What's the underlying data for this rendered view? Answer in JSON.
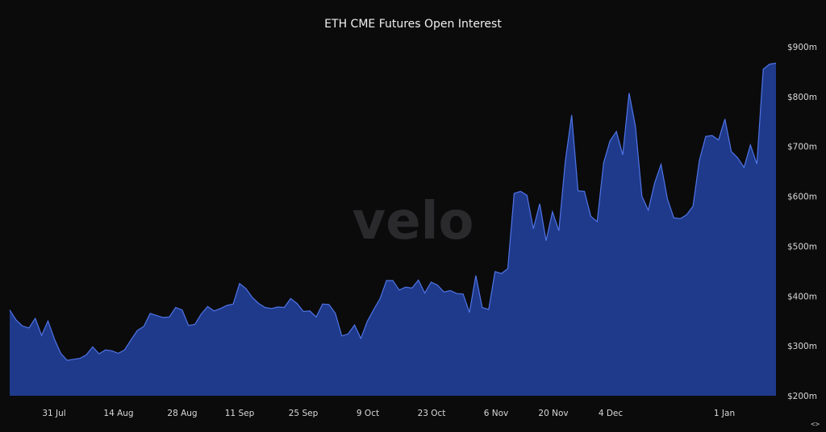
{
  "chart_data": {
    "type": "area",
    "title": "ETH CME Futures Open Interest",
    "watermark": "velo",
    "nav_label": "<>",
    "fill_color": "#1f3a8a",
    "line_color": "#4f74e8",
    "background": "#0b0b0c",
    "ylim": [
      200,
      900
    ],
    "yticks": [
      {
        "value": 200,
        "label": "$200m"
      },
      {
        "value": 300,
        "label": "$300m"
      },
      {
        "value": 400,
        "label": "$400m"
      },
      {
        "value": 500,
        "label": "$500m"
      },
      {
        "value": 600,
        "label": "$600m"
      },
      {
        "value": 700,
        "label": "$700m"
      },
      {
        "value": 800,
        "label": "$800m"
      },
      {
        "value": 900,
        "label": "$900m"
      }
    ],
    "xlim": [
      "2023-07-24",
      "2024-01-10"
    ],
    "xticks": [
      {
        "date": "2023-07-31",
        "label": "31 Jul"
      },
      {
        "date": "2023-08-14",
        "label": "14 Aug"
      },
      {
        "date": "2023-08-28",
        "label": "28 Aug"
      },
      {
        "date": "2023-09-11",
        "label": "11 Sep"
      },
      {
        "date": "2023-09-25",
        "label": "25 Sep"
      },
      {
        "date": "2023-10-09",
        "label": "9 Oct"
      },
      {
        "date": "2023-10-23",
        "label": "23 Oct"
      },
      {
        "date": "2023-11-06",
        "label": "6 Nov"
      },
      {
        "date": "2023-11-20",
        "label": "20 Nov"
      },
      {
        "date": "2023-12-04",
        "label": "4 Dec"
      },
      {
        "date": "2024-01-01",
        "label": "1 Jan"
      }
    ],
    "series": [
      {
        "points": [
          [
            "2023-07-24",
            372
          ],
          [
            "2023-07-25",
            352
          ],
          [
            "2023-07-26",
            340
          ],
          [
            "2023-07-27",
            336
          ],
          [
            "2023-07-28",
            355
          ],
          [
            "2023-07-29",
            321
          ],
          [
            "2023-07-30",
            350
          ],
          [
            "2023-07-31",
            314
          ],
          [
            "2023-08-01",
            285
          ],
          [
            "2023-08-02",
            271
          ],
          [
            "2023-08-03",
            273
          ],
          [
            "2023-08-04",
            275
          ],
          [
            "2023-08-05",
            282
          ],
          [
            "2023-08-06",
            298
          ],
          [
            "2023-08-07",
            284
          ],
          [
            "2023-08-08",
            292
          ],
          [
            "2023-08-09",
            290
          ],
          [
            "2023-08-10",
            285
          ],
          [
            "2023-08-11",
            292
          ],
          [
            "2023-08-12",
            312
          ],
          [
            "2023-08-13",
            331
          ],
          [
            "2023-08-14",
            339
          ],
          [
            "2023-08-15",
            365
          ],
          [
            "2023-08-16",
            361
          ],
          [
            "2023-08-17",
            357
          ],
          [
            "2023-08-18",
            358
          ],
          [
            "2023-08-19",
            377
          ],
          [
            "2023-08-20",
            372
          ],
          [
            "2023-08-21",
            341
          ],
          [
            "2023-08-22",
            343
          ],
          [
            "2023-08-23",
            364
          ],
          [
            "2023-08-24",
            379
          ],
          [
            "2023-08-25",
            370
          ],
          [
            "2023-08-26",
            375
          ],
          [
            "2023-08-27",
            381
          ],
          [
            "2023-08-28",
            384
          ],
          [
            "2023-08-29",
            425
          ],
          [
            "2023-08-30",
            415
          ],
          [
            "2023-08-31",
            397
          ],
          [
            "2023-09-01",
            385
          ],
          [
            "2023-09-02",
            377
          ],
          [
            "2023-09-03",
            375
          ],
          [
            "2023-09-04",
            378
          ],
          [
            "2023-09-05",
            377
          ],
          [
            "2023-09-06",
            395
          ],
          [
            "2023-09-07",
            385
          ],
          [
            "2023-09-08",
            369
          ],
          [
            "2023-09-09",
            370
          ],
          [
            "2023-09-10",
            358
          ],
          [
            "2023-09-11",
            384
          ],
          [
            "2023-09-12",
            383
          ],
          [
            "2023-09-13",
            365
          ],
          [
            "2023-09-14",
            320
          ],
          [
            "2023-09-15",
            324
          ],
          [
            "2023-09-16",
            342
          ],
          [
            "2023-09-17",
            315
          ],
          [
            "2023-09-18",
            349
          ],
          [
            "2023-09-19",
            373
          ],
          [
            "2023-09-20",
            395
          ],
          [
            "2023-09-21",
            431
          ],
          [
            "2023-09-22",
            431
          ],
          [
            "2023-09-23",
            412
          ],
          [
            "2023-09-24",
            418
          ],
          [
            "2023-09-25",
            416
          ],
          [
            "2023-09-26",
            432
          ],
          [
            "2023-09-27",
            406
          ],
          [
            "2023-09-28",
            428
          ],
          [
            "2023-09-29",
            422
          ],
          [
            "2023-09-30",
            408
          ],
          [
            "2023-10-01",
            411
          ],
          [
            "2023-10-02",
            405
          ],
          [
            "2023-10-03",
            404
          ],
          [
            "2023-10-04",
            367
          ],
          [
            "2023-10-05",
            441
          ],
          [
            "2023-10-06",
            377
          ],
          [
            "2023-10-07",
            373
          ],
          [
            "2023-10-08",
            449
          ],
          [
            "2023-10-09",
            445
          ],
          [
            "2023-10-10",
            455
          ],
          [
            "2023-10-11",
            606
          ],
          [
            "2023-10-12",
            610
          ],
          [
            "2023-10-13",
            602
          ],
          [
            "2023-10-14",
            535
          ],
          [
            "2023-10-15",
            585
          ],
          [
            "2023-10-16",
            511
          ],
          [
            "2023-10-17",
            569
          ],
          [
            "2023-10-18",
            531
          ],
          [
            "2023-10-19",
            670
          ],
          [
            "2023-10-20",
            763
          ],
          [
            "2023-10-21",
            611
          ],
          [
            "2023-10-22",
            610
          ],
          [
            "2023-10-23",
            560
          ],
          [
            "2023-10-24",
            549
          ],
          [
            "2023-10-25",
            667
          ],
          [
            "2023-10-26",
            711
          ],
          [
            "2023-10-27",
            730
          ],
          [
            "2023-10-28",
            683
          ],
          [
            "2023-10-29",
            807
          ],
          [
            "2023-10-30",
            740
          ],
          [
            "2023-10-31",
            600
          ],
          [
            "2023-11-01",
            572
          ],
          [
            "2023-11-02",
            627
          ],
          [
            "2023-11-03",
            664
          ],
          [
            "2023-11-04",
            595
          ],
          [
            "2023-11-05",
            557
          ],
          [
            "2023-11-06",
            555
          ],
          [
            "2023-11-07",
            563
          ],
          [
            "2023-11-08",
            580
          ],
          [
            "2023-11-09",
            672
          ],
          [
            "2023-11-10",
            720
          ],
          [
            "2023-11-11",
            722
          ],
          [
            "2023-11-12",
            713
          ],
          [
            "2023-11-13",
            755
          ],
          [
            "2023-11-14",
            690
          ],
          [
            "2023-11-15",
            677
          ],
          [
            "2023-11-16",
            658
          ],
          [
            "2023-11-17",
            703
          ],
          [
            "2023-11-18",
            665
          ],
          [
            "2023-11-19",
            855
          ],
          [
            "2023-11-20",
            865
          ],
          [
            "2023-11-21",
            867
          ]
        ]
      }
    ]
  }
}
